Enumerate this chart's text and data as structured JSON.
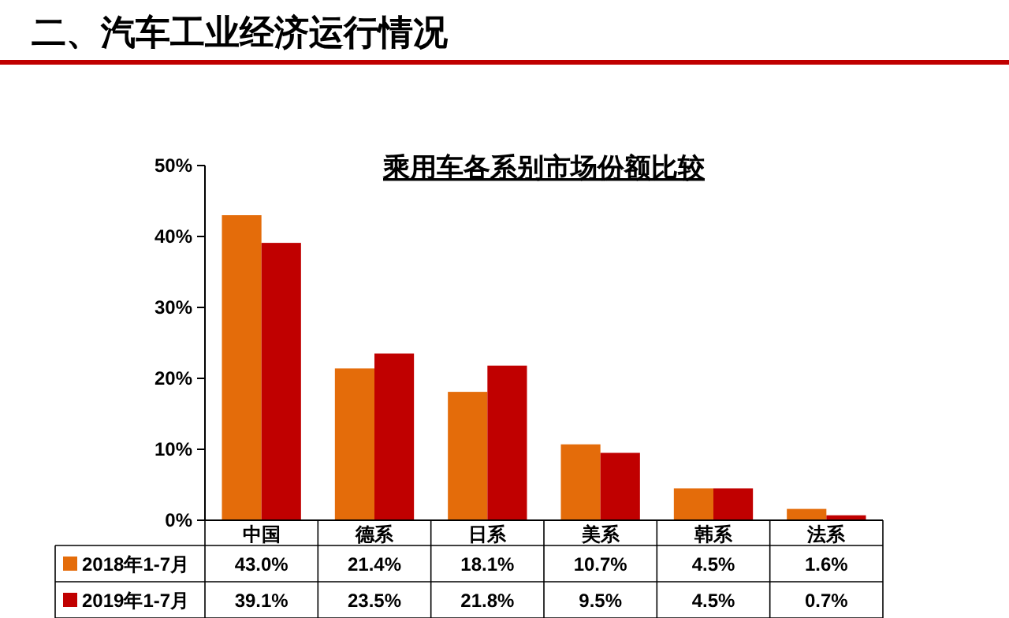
{
  "chart_data": {
    "type": "bar",
    "title": "二、汽车工业经济运行情况",
    "subtitle": "乘用车各系别市场份额比较",
    "categories": [
      "中国",
      "德系",
      "日系",
      "美系",
      "韩系",
      "法系"
    ],
    "series": [
      {
        "name": "2018年1-7月",
        "color": "#e46c0a",
        "values": [
          43.0,
          21.4,
          18.1,
          10.7,
          4.5,
          1.6
        ],
        "value_labels": [
          "43.0%",
          "21.4%",
          "18.1%",
          "10.7%",
          "4.5%",
          "1.6%"
        ]
      },
      {
        "name": "2019年1-7月",
        "color": "#c00000",
        "values": [
          39.1,
          23.5,
          21.8,
          9.5,
          4.5,
          0.7
        ],
        "value_labels": [
          "39.1%",
          "23.5%",
          "21.8%",
          "9.5%",
          "4.5%",
          "0.7%"
        ]
      }
    ],
    "ylim": [
      0,
      50
    ],
    "yticks": [
      {
        "value": 0,
        "label": "0%"
      },
      {
        "value": 10,
        "label": "10%"
      },
      {
        "value": 20,
        "label": "20%"
      },
      {
        "value": 30,
        "label": "30%"
      },
      {
        "value": 40,
        "label": "40%"
      },
      {
        "value": 50,
        "label": "50%"
      }
    ],
    "legend": "bottom"
  }
}
